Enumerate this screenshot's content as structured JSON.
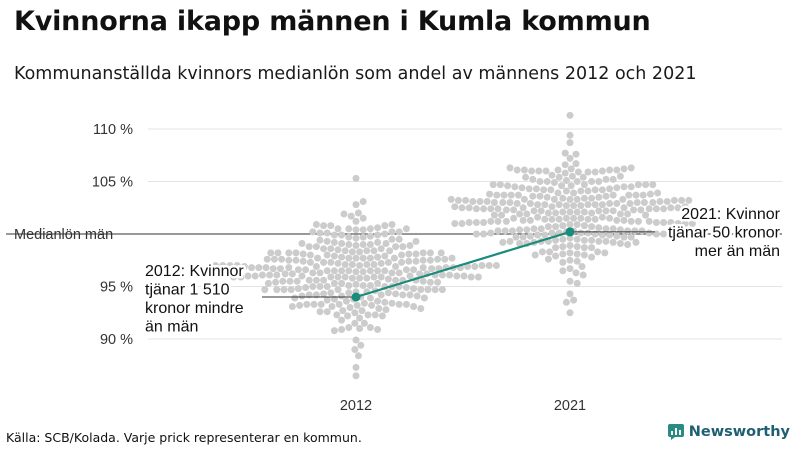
{
  "title": "Kvinnorna ikapp männen i Kumla kommun",
  "subtitle": "Kommunanställda kvinnors medianlön som andel av männens 2012 och 2021",
  "footer": {
    "source": "Källa: SCB/Kolada. Varje prick representerar en kommun."
  },
  "brand": {
    "name": "Newsworthy",
    "icon": "newsworthy-logo-icon"
  },
  "colors": {
    "highlight": "#1a8c7c",
    "dots": "#cccccc",
    "grid": "#e3e3e3",
    "reference": "#333333",
    "brand": "#1f5f73"
  },
  "chart_data": {
    "type": "scatter",
    "variant": "beeswarm",
    "title": "Kvinnorna ikapp männen i Kumla kommun",
    "subtitle": "Kommunanställda kvinnors medianlön som andel av männens 2012 och 2021",
    "categories": [
      "2012",
      "2021"
    ],
    "ylim": [
      85.5,
      112
    ],
    "yticks": [
      {
        "value": 90,
        "label": "90 %"
      },
      {
        "value": 95,
        "label": "95 %"
      },
      {
        "value": 100,
        "label": "Medianlön män"
      },
      {
        "value": 105,
        "label": "105 %"
      },
      {
        "value": 110,
        "label": "110 %"
      }
    ],
    "grid": true,
    "reference_line": {
      "value": 100,
      "label": "Medianlön män"
    },
    "distributions": [
      {
        "category": "2012",
        "count": 290,
        "mean": 96.4,
        "sd": 2.6,
        "min": 86.5,
        "max": 105.3,
        "color": "#cccccc"
      },
      {
        "category": "2021",
        "count": 290,
        "mean": 102.1,
        "sd": 2.6,
        "min": 92.5,
        "max": 111.3,
        "color": "#cccccc"
      }
    ],
    "highlight": {
      "name": "Kumla",
      "color": "#1a8c7c",
      "points": [
        {
          "x": "2012",
          "y": 94.0
        },
        {
          "x": "2021",
          "y": 100.2
        }
      ]
    },
    "annotations": [
      {
        "x": "2012",
        "y": 94.0,
        "text": [
          "2012: Kvinnor",
          "tjänar 1 510",
          "kronor mindre",
          "än män"
        ],
        "align": "left"
      },
      {
        "x": "2021",
        "y": 100.2,
        "text": [
          "2021: Kvinnor",
          "tjänar 50 kronor",
          "mer än män"
        ],
        "align": "right"
      }
    ]
  }
}
